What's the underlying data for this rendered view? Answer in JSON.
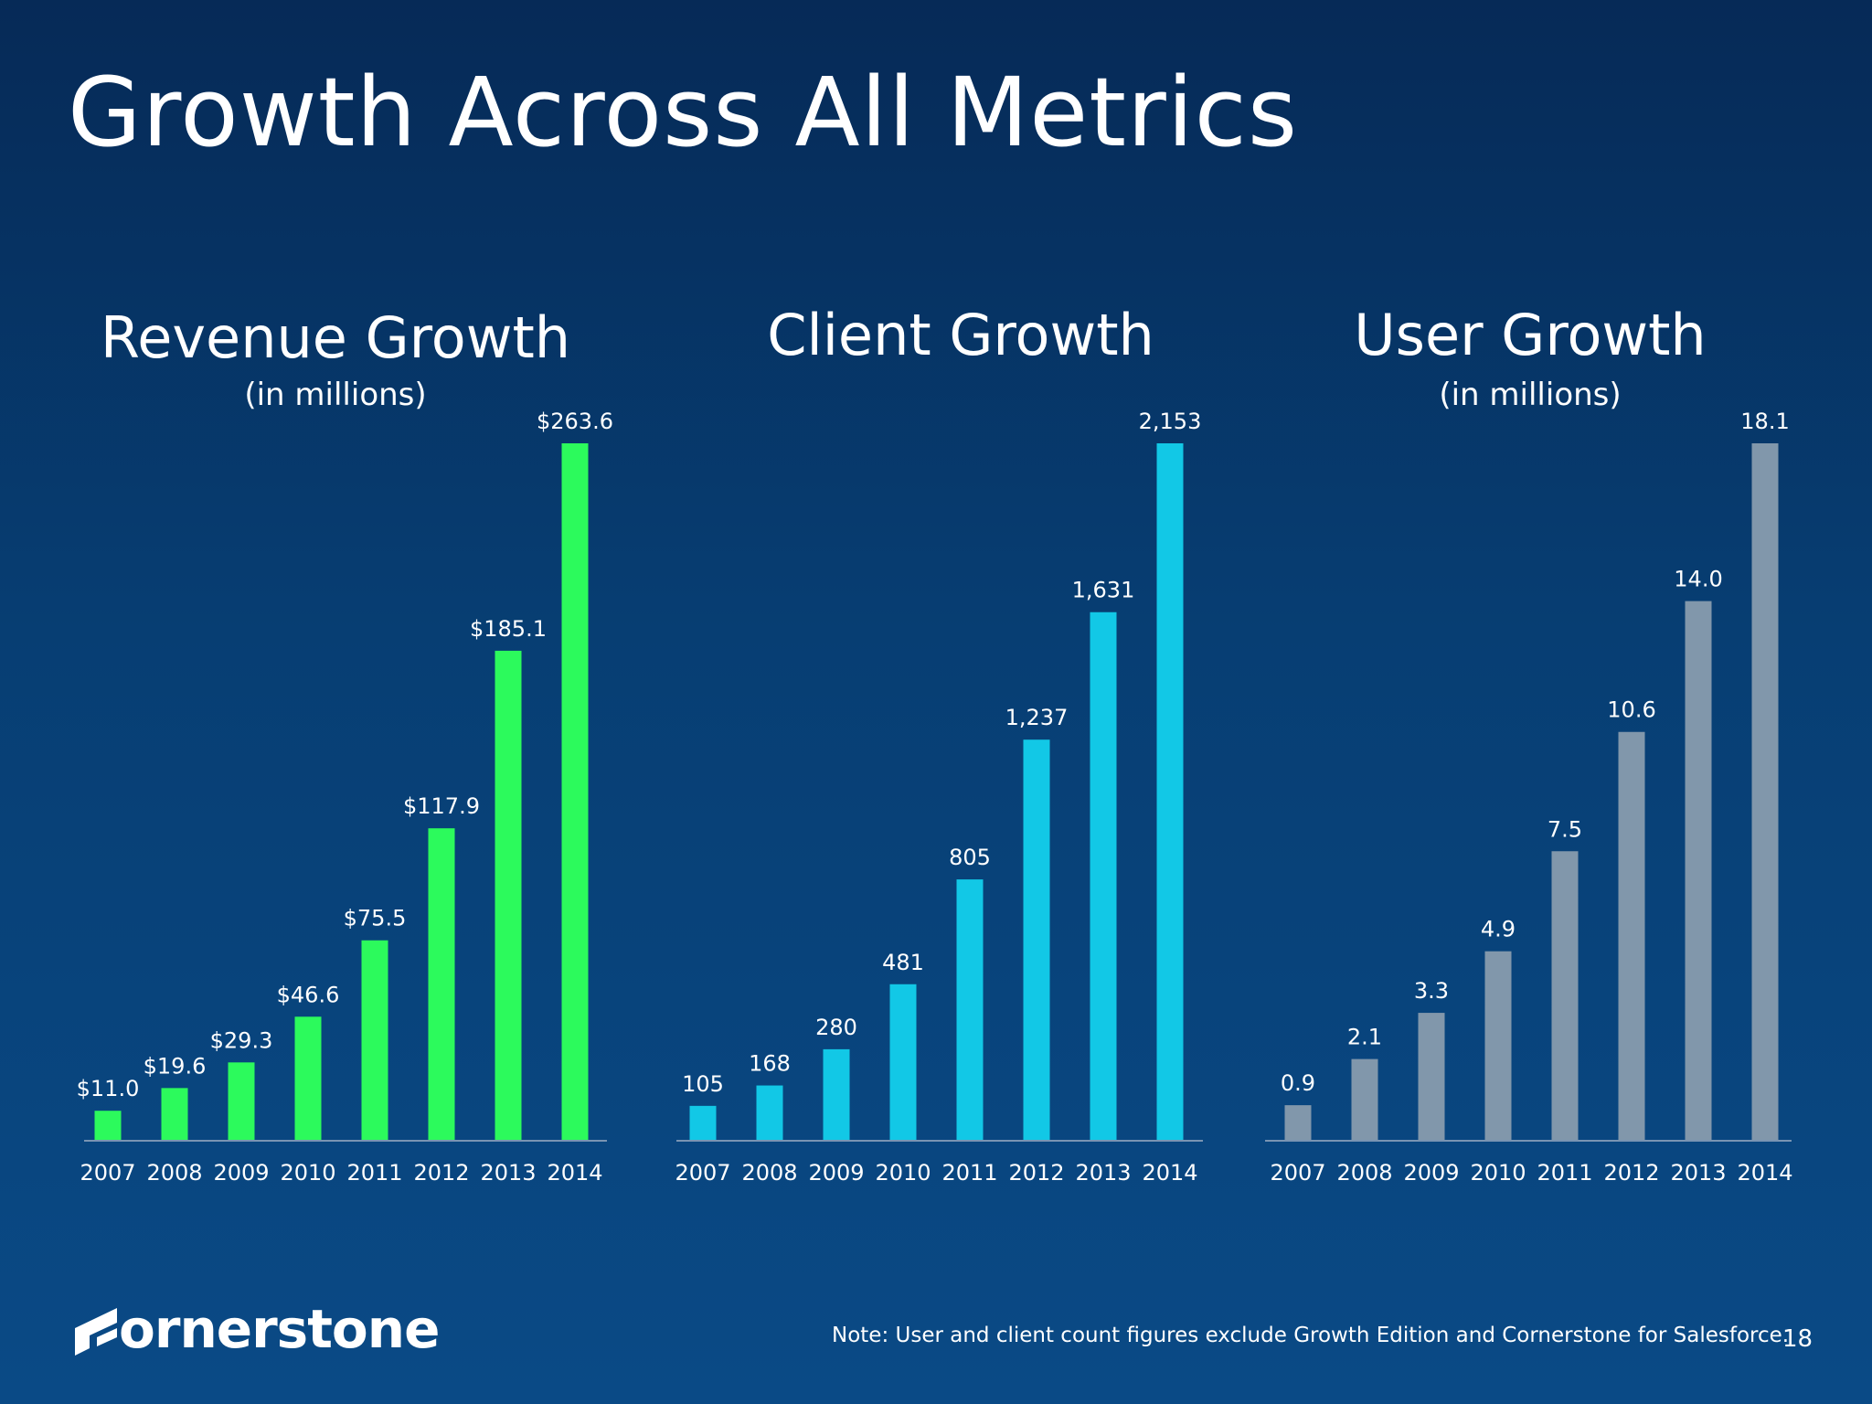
{
  "slide": {
    "title": "Growth Across All Metrics",
    "logo_text": "ornerstone",
    "note": "Note: User and client count figures exclude Growth Edition and Cornerstone for Salesforce.",
    "page_number": "18"
  },
  "colors": {
    "revenue": "#2cfa5c",
    "client": "#12c8e6",
    "user": "#8197ab",
    "axis": "#7a94b3"
  },
  "chart_data": [
    {
      "type": "bar",
      "title": "Revenue Growth",
      "subtitle": "(in millions)",
      "categories": [
        "2007",
        "2008",
        "2009",
        "2010",
        "2011",
        "2012",
        "2013",
        "2014"
      ],
      "values": [
        11.0,
        19.6,
        29.3,
        46.6,
        75.5,
        117.9,
        185.1,
        263.6
      ],
      "data_labels": [
        "$11.0",
        "$19.6",
        "$29.3",
        "$46.6",
        "$75.5",
        "$117.9",
        "$185.1",
        "$263.6"
      ],
      "color": "#2cfa5c",
      "grid": false,
      "legend": "none"
    },
    {
      "type": "bar",
      "title": "Client Growth",
      "subtitle": "",
      "categories": [
        "2007",
        "2008",
        "2009",
        "2010",
        "2011",
        "2012",
        "2013",
        "2014"
      ],
      "values": [
        105,
        168,
        280,
        481,
        805,
        1237,
        1631,
        2153
      ],
      "data_labels": [
        "105",
        "168",
        "280",
        "481",
        "805",
        "1,237",
        "1,631",
        "2,153"
      ],
      "color": "#12c8e6",
      "grid": false,
      "legend": "none"
    },
    {
      "type": "bar",
      "title": "User Growth",
      "subtitle": "(in millions)",
      "categories": [
        "2007",
        "2008",
        "2009",
        "2010",
        "2011",
        "2012",
        "2013",
        "2014"
      ],
      "values": [
        0.9,
        2.1,
        3.3,
        4.9,
        7.5,
        10.6,
        14.0,
        18.1
      ],
      "data_labels": [
        "0.9",
        "2.1",
        "3.3",
        "4.9",
        "7.5",
        "10.6",
        "14.0",
        "18.1"
      ],
      "color": "#8197ab",
      "grid": false,
      "legend": "none"
    }
  ]
}
